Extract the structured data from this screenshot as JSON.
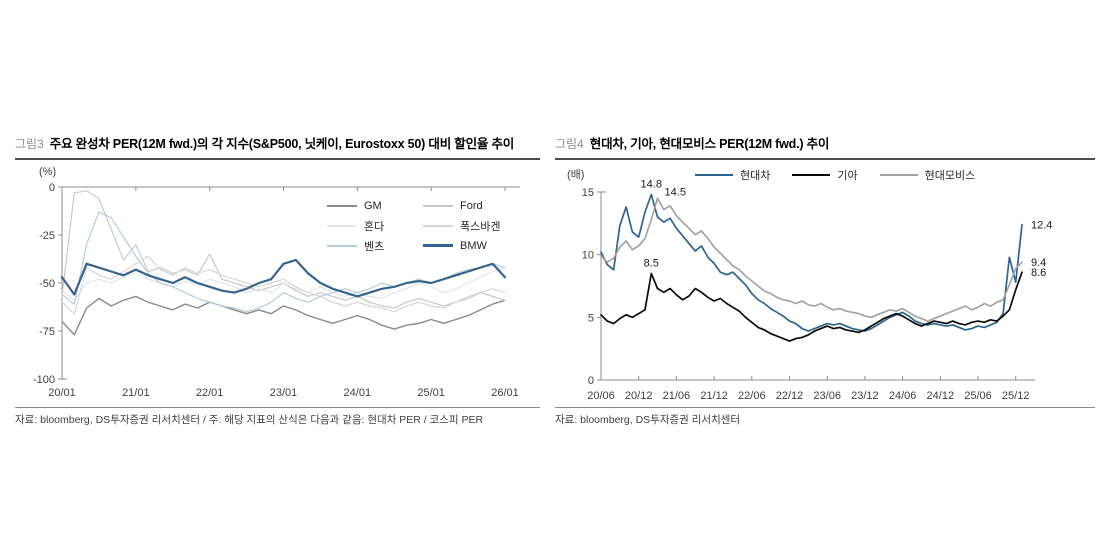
{
  "page": {
    "background": "#ffffff",
    "axis_color": "#8c8c8c",
    "title_rule_color": "#4d4d4d"
  },
  "chart_data": [
    {
      "type": "line",
      "figure_label": "그림3",
      "title": "주요 완성차 PER(12M fwd.)의 각 지수(S&P500, 닛케이, Eurostoxx 50) 대비 할인율 추이",
      "y_unit_label": "(%)",
      "source": "자료: bloomberg, DS투자증권 리서치센터 / 주: 해당 지표의 산식은 다음과 같음: 현대차 PER / 코스피 PER",
      "ylim": [
        0,
        -100
      ],
      "y_ticks": [
        0,
        -25,
        -50,
        -75,
        -100
      ],
      "x_range": [
        "2020-01",
        "2026-01"
      ],
      "x_sampling": "bimonthly",
      "x_tick_labels": [
        "20/01",
        "21/01",
        "22/01",
        "23/01",
        "24/01",
        "25/01",
        "26/01"
      ],
      "grid": false,
      "legend_position": "upper-right-two-columns",
      "series": [
        {
          "name": "GM",
          "color": "#8a8a8a",
          "width": 1.4,
          "values": [
            -70,
            -77,
            -63,
            -58,
            -62,
            -59,
            -57,
            -60,
            -62,
            -64,
            -61,
            -63,
            -60,
            -62,
            -64,
            -66,
            -64,
            -66,
            -62,
            -64,
            -67,
            -69,
            -71,
            -69,
            -67,
            -69,
            -72,
            -74,
            -72,
            -71,
            -69,
            -71,
            -69,
            -67,
            -64,
            -61,
            -59
          ]
        },
        {
          "name": "Ford",
          "color": "#c9c9c9",
          "width": 1.2,
          "values": [
            -57,
            -3,
            -2,
            -6,
            -22,
            -38,
            -30,
            -44,
            -42,
            -45,
            -43,
            -46,
            -35,
            -48,
            -50,
            -52,
            -54,
            -52,
            -50,
            -54,
            -57,
            -55,
            -57,
            -59,
            -57,
            -60,
            -62,
            -63,
            -60,
            -58,
            -60,
            -62,
            -60,
            -58,
            -55,
            -57,
            -59
          ]
        },
        {
          "name": "혼다",
          "color": "#dfe5ec",
          "width": 1.2,
          "values": [
            -54,
            -59,
            -50,
            -48,
            -50,
            -47,
            -45,
            -48,
            -50,
            -52,
            -49,
            -51,
            -48,
            -50,
            -52,
            -55,
            -53,
            -55,
            -50,
            -53,
            -55,
            -52,
            -55,
            -57,
            -55,
            -57,
            -58,
            -55,
            -53,
            -50,
            -52,
            -55,
            -53,
            -50,
            -47,
            -44,
            -42
          ]
        },
        {
          "name": "폭스바겐",
          "color": "#d6d6d6",
          "width": 1.2,
          "values": [
            -60,
            -66,
            -42,
            -46,
            -48,
            -44,
            -40,
            -36,
            -43,
            -46,
            -42,
            -45,
            -43,
            -46,
            -48,
            -50,
            -52,
            -50,
            -48,
            -52,
            -55,
            -57,
            -60,
            -62,
            -60,
            -62,
            -63,
            -65,
            -62,
            -60,
            -62,
            -63,
            -60,
            -57,
            -55,
            -53,
            -55
          ]
        },
        {
          "name": "벤츠",
          "color": "#b7cbde",
          "width": 1.2,
          "values": [
            -56,
            -61,
            -30,
            -13,
            -16,
            -26,
            -36,
            -45,
            -50,
            -52,
            -55,
            -58,
            -60,
            -62,
            -63,
            -65,
            -63,
            -60,
            -55,
            -58,
            -60,
            -57,
            -55,
            -53,
            -55,
            -53,
            -50,
            -52,
            -50,
            -48,
            -50,
            -48,
            -45,
            -43,
            -42,
            -40,
            -42
          ]
        },
        {
          "name": "BMW",
          "color": "#35648e",
          "width": 2.2,
          "values": [
            -47,
            -56,
            -40,
            -42,
            -44,
            -46,
            -43,
            -46,
            -48,
            -50,
            -47,
            -50,
            -52,
            -54,
            -55,
            -53,
            -50,
            -48,
            -40,
            -38,
            -45,
            -50,
            -53,
            -55,
            -57,
            -55,
            -53,
            -52,
            -50,
            -49,
            -50,
            -48,
            -46,
            -44,
            -42,
            -40,
            -47
          ]
        }
      ],
      "annotations": []
    },
    {
      "type": "line",
      "figure_label": "그림4",
      "title": "현대차, 기아, 현대모비스 PER(12M fwd.) 추이",
      "y_unit_label": "(배)",
      "source": "자료: bloomberg, DS투자증권 리서치센터",
      "ylim": [
        15,
        0
      ],
      "y_ticks": [
        0,
        5,
        10,
        15
      ],
      "x_range": [
        "2020-06",
        "2026-01"
      ],
      "x_sampling": "monthly",
      "x_tick_labels": [
        "20/06",
        "20/12",
        "21/06",
        "21/12",
        "22/06",
        "22/12",
        "23/06",
        "23/12",
        "24/06",
        "24/12",
        "25/06",
        "25/12"
      ],
      "grid": false,
      "legend_position": "top-center-row",
      "series": [
        {
          "name": "현대차",
          "color": "#2e6490",
          "width": 1.7,
          "values": [
            10.2,
            9.2,
            8.8,
            12.3,
            13.8,
            11.8,
            11.4,
            13.4,
            14.8,
            13.0,
            12.6,
            12.9,
            12.1,
            11.5,
            10.9,
            10.3,
            10.7,
            9.8,
            9.3,
            8.6,
            8.4,
            8.6,
            8.1,
            7.6,
            6.9,
            6.4,
            6.1,
            5.7,
            5.4,
            5.1,
            4.7,
            4.5,
            4.1,
            3.9,
            4.1,
            4.3,
            4.5,
            4.4,
            4.5,
            4.3,
            4.1,
            4.0,
            3.9,
            4.1,
            4.4,
            4.7,
            5.0,
            5.2,
            5.4,
            5.1,
            4.7,
            4.5,
            4.4,
            4.5,
            4.4,
            4.3,
            4.4,
            4.2,
            4.0,
            4.1,
            4.3,
            4.2,
            4.4,
            4.6,
            5.3,
            9.8,
            7.8,
            12.4
          ]
        },
        {
          "name": "기아",
          "color": "#0a0a0a",
          "width": 1.7,
          "values": [
            5.2,
            4.7,
            4.5,
            4.9,
            5.2,
            5.0,
            5.3,
            5.6,
            8.5,
            7.3,
            7.0,
            7.3,
            6.8,
            6.4,
            6.7,
            7.3,
            7.0,
            6.6,
            6.3,
            6.5,
            6.1,
            5.8,
            5.5,
            5.0,
            4.6,
            4.2,
            4.0,
            3.7,
            3.5,
            3.3,
            3.1,
            3.3,
            3.4,
            3.6,
            3.9,
            4.1,
            4.3,
            4.1,
            4.2,
            4.0,
            3.9,
            3.8,
            4.0,
            4.3,
            4.6,
            4.9,
            5.1,
            5.3,
            5.1,
            4.8,
            4.5,
            4.3,
            4.5,
            4.7,
            4.6,
            4.5,
            4.7,
            4.5,
            4.4,
            4.6,
            4.7,
            4.6,
            4.8,
            4.7,
            5.1,
            5.6,
            7.2,
            8.6
          ]
        },
        {
          "name": "현대모비스",
          "color": "#a3a3a3",
          "width": 1.7,
          "values": [
            9.9,
            9.4,
            9.7,
            10.6,
            11.1,
            10.4,
            10.7,
            11.3,
            12.8,
            14.5,
            13.6,
            13.9,
            13.1,
            12.6,
            12.1,
            11.6,
            11.9,
            11.3,
            10.6,
            10.1,
            9.6,
            9.1,
            8.8,
            8.3,
            7.9,
            7.5,
            7.1,
            6.9,
            6.6,
            6.4,
            6.3,
            6.1,
            6.3,
            6.0,
            5.9,
            6.1,
            5.8,
            5.6,
            5.7,
            5.5,
            5.4,
            5.3,
            5.1,
            5.0,
            5.2,
            5.4,
            5.6,
            5.5,
            5.7,
            5.4,
            5.1,
            4.9,
            4.7,
            4.9,
            5.1,
            5.3,
            5.5,
            5.7,
            5.9,
            5.6,
            5.8,
            6.1,
            5.9,
            6.2,
            6.4,
            7.6,
            8.9,
            9.4
          ]
        }
      ],
      "annotations": [
        {
          "text": "14.8",
          "series": 0,
          "point": 8,
          "position": "above"
        },
        {
          "text": "14.5",
          "series": 2,
          "point": 9,
          "position": "right-above"
        },
        {
          "text": "8.5",
          "series": 1,
          "point": 8,
          "position": "above"
        },
        {
          "text": "12.4",
          "series": 0,
          "point": 67,
          "position": "right"
        },
        {
          "text": "9.4",
          "series": 2,
          "point": 67,
          "position": "right"
        },
        {
          "text": "8.6",
          "series": 1,
          "point": 67,
          "position": "right"
        }
      ]
    }
  ]
}
